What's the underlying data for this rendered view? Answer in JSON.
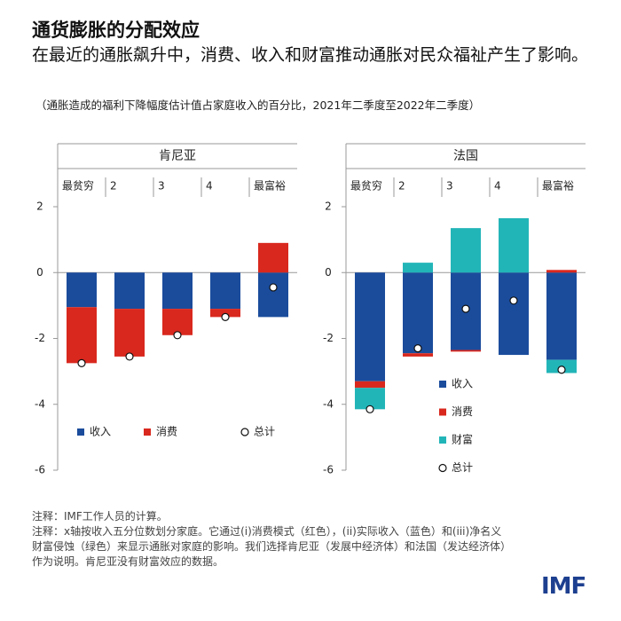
{
  "title": "通货膨胀的分配效应",
  "subtitle": "在最近的通胀飙升中，消费、收入和财富推动通胀对民众福祉产生了影响。",
  "note": "（通胀造成的福利下降幅度估计值占家庭收入的百分比，2021年二季度至2022年二季度）",
  "footnotes": [
    "注释：IMF工作人员的计算。",
    "注释：x轴按收入五分位数划分家庭。它通过(i)消费模式（红色），(ii)实际收入（蓝色）和(iii)净名义财富侵蚀（绿色）来显示通胀对家庭的影响。我们选择肯尼亚（发展中经济体）和法国（发达经济体）作为说明。肯尼亚没有财富效应的数据。"
  ],
  "logo": "IMF",
  "chart_data": [
    {
      "type": "bar",
      "stacked": true,
      "title": "肯尼亚",
      "categories": [
        "最贫穷",
        "2",
        "3",
        "4",
        "最富裕"
      ],
      "series": [
        {
          "name": "收入",
          "color": "#1b4c9c",
          "values": [
            -1.05,
            -1.1,
            -1.1,
            -1.1,
            -1.35
          ]
        },
        {
          "name": "消费",
          "color": "#d9281e",
          "values": [
            -1.7,
            -1.45,
            -0.8,
            -0.25,
            0.9
          ]
        }
      ],
      "total": {
        "name": "总计",
        "values": [
          -2.75,
          -2.55,
          -1.9,
          -1.35,
          -0.45
        ]
      },
      "ylim": [
        -6,
        2
      ],
      "yticks": [
        -6,
        -4,
        -2,
        0,
        2
      ],
      "legend": "bottom"
    },
    {
      "type": "bar",
      "stacked": true,
      "title": "法国",
      "categories": [
        "最贫穷",
        "2",
        "3",
        "4",
        "最富裕"
      ],
      "series": [
        {
          "name": "收入",
          "color": "#1b4c9c",
          "values": [
            -3.3,
            -2.45,
            -2.35,
            -2.5,
            -2.65
          ]
        },
        {
          "name": "消费",
          "color": "#d9281e",
          "values": [
            -0.2,
            -0.1,
            -0.05,
            0,
            0.08
          ]
        },
        {
          "name": "财富",
          "color": "#22b5b8",
          "values": [
            -0.65,
            0.3,
            1.35,
            1.65,
            -0.4
          ]
        }
      ],
      "total": {
        "name": "总计",
        "values": [
          -4.15,
          -2.3,
          -1.1,
          -0.85,
          -2.95
        ]
      },
      "ylim": [
        -6,
        2
      ],
      "yticks": [
        -6,
        -4,
        -2,
        0,
        2
      ],
      "legend": "right"
    }
  ]
}
